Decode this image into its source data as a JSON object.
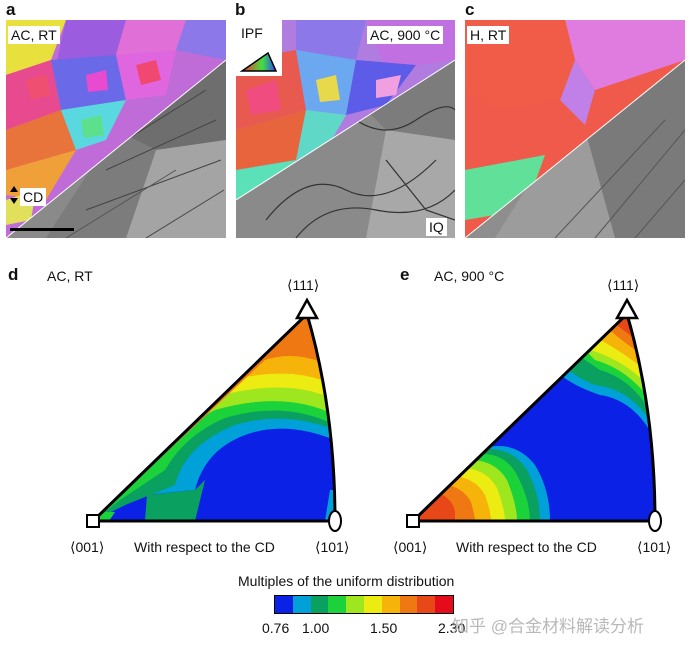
{
  "panels_top": [
    {
      "letter": "a",
      "corner_label": "AC, RT",
      "extra_label": "CD"
    },
    {
      "letter": "b",
      "corner_label": "AC, 900 °C",
      "legend_label": "IPF",
      "iq_label": "IQ"
    },
    {
      "letter": "c",
      "corner_label": "H, RT"
    }
  ],
  "panels_bottom": [
    {
      "letter": "d",
      "title": "AC, RT"
    },
    {
      "letter": "e",
      "title": "AC, 900 °C"
    }
  ],
  "poles": {
    "top": "⟨111⟩",
    "left": "⟨001⟩",
    "right": "⟨101⟩"
  },
  "axis_caption": "With respect to the CD",
  "colorbar": {
    "title": "Multiples of the uniform distribution",
    "ticks": [
      "0.76",
      "1.00",
      "1.50",
      "2.30"
    ],
    "colors": [
      "#0b22e6",
      "#00a0d8",
      "#0aa060",
      "#1cd23a",
      "#9ee61e",
      "#ecec12",
      "#f6b40a",
      "#f07812",
      "#e84818",
      "#e40c1a"
    ]
  },
  "watermark": "知乎 @合金材料解读分析"
}
